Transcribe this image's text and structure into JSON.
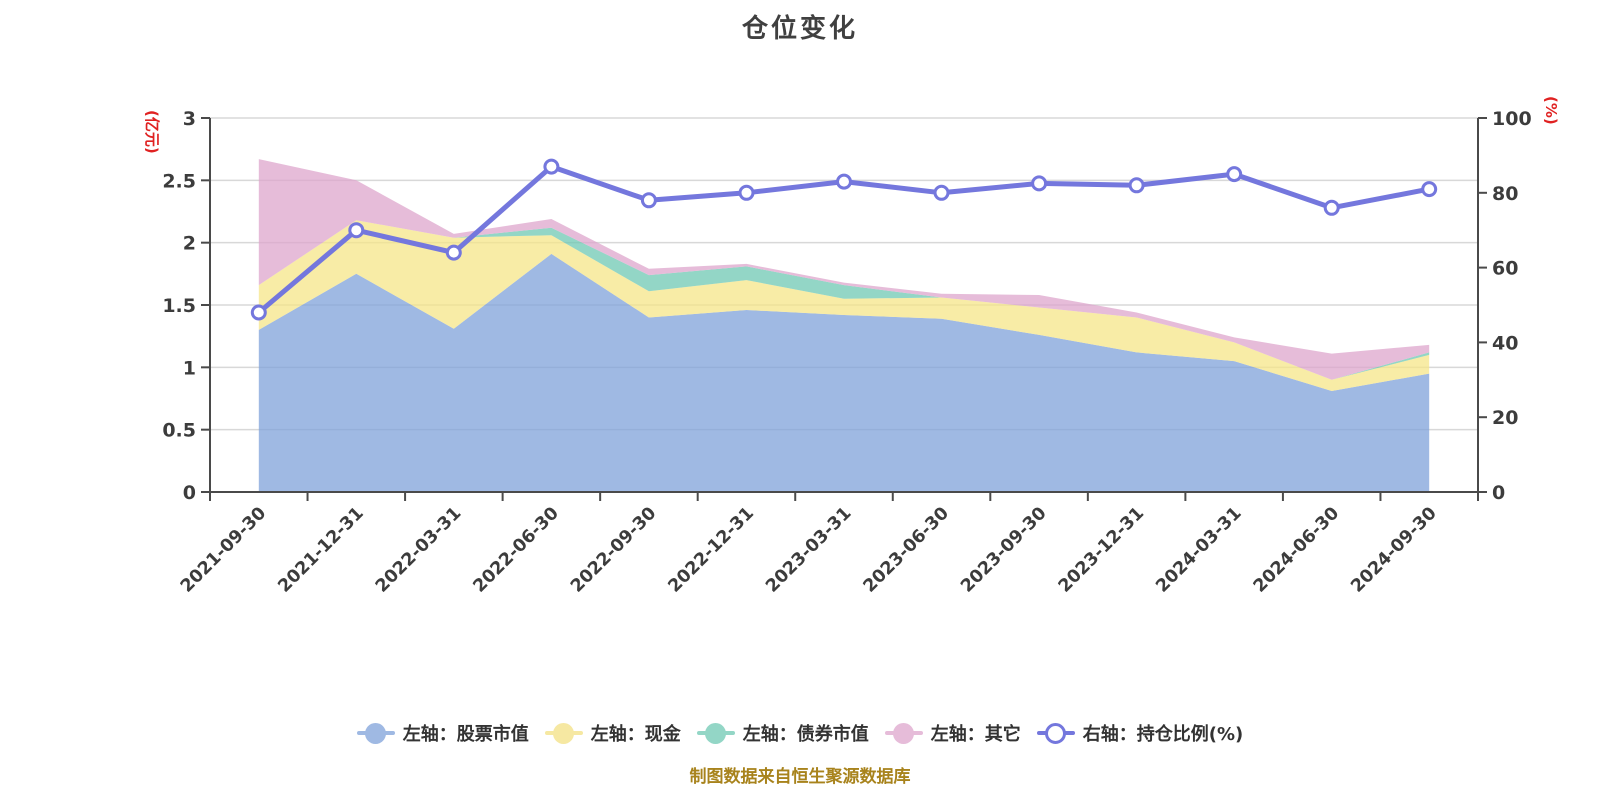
{
  "title": "仓位变化",
  "footer": "制图数据来自恒生聚源数据库",
  "legend": {
    "items": [
      {
        "label": "左轴：股票市值",
        "color": "#9fb9e3",
        "hollow": false
      },
      {
        "label": "左轴：现金",
        "color": "#f6e8a2",
        "hollow": false
      },
      {
        "label": "左轴：债券市值",
        "color": "#93d6c6",
        "hollow": false
      },
      {
        "label": "左轴：其它",
        "color": "#e6bcd9",
        "hollow": false
      },
      {
        "label": "右轴：持仓比例(%)",
        "color": "#7477dd",
        "hollow": true
      }
    ]
  },
  "chart_data": {
    "type": "area",
    "title": "仓位变化",
    "categories": [
      "2021-09-30",
      "2021-12-31",
      "2022-03-31",
      "2022-06-30",
      "2022-09-30",
      "2022-12-31",
      "2023-03-31",
      "2023-06-30",
      "2023-09-30",
      "2023-12-31",
      "2024-03-31",
      "2024-06-30",
      "2024-09-30"
    ],
    "series": [
      {
        "name": "左轴：股票市值",
        "type": "area",
        "stack": true,
        "yaxis": "left",
        "legend_color": "#9fb9e3",
        "fill": "#7fa1d9",
        "values": [
          1.3,
          1.75,
          1.31,
          1.91,
          1.4,
          1.46,
          1.42,
          1.39,
          1.26,
          1.12,
          1.05,
          0.81,
          0.95
        ]
      },
      {
        "name": "左轴：现金",
        "type": "area",
        "stack": true,
        "yaxis": "left",
        "legend_color": "#f6e8a2",
        "fill": "#f5e588",
        "values": [
          0.36,
          0.43,
          0.73,
          0.15,
          0.21,
          0.24,
          0.13,
          0.17,
          0.22,
          0.28,
          0.15,
          0.09,
          0.15
        ]
      },
      {
        "name": "左轴：债券市值",
        "type": "area",
        "stack": true,
        "yaxis": "left",
        "legend_color": "#93d6c6",
        "fill": "#6fc8b3",
        "values": [
          0,
          0,
          0,
          0.06,
          0.13,
          0.11,
          0.11,
          0,
          0,
          0,
          0,
          0,
          0.02
        ]
      },
      {
        "name": "左轴：其它",
        "type": "area",
        "stack": true,
        "yaxis": "left",
        "legend_color": "#e6bcd9",
        "fill": "#dda5cc",
        "values": [
          1.01,
          0.32,
          0.03,
          0.07,
          0.05,
          0.02,
          0.02,
          0.03,
          0.1,
          0.04,
          0.04,
          0.21,
          0.06
        ]
      },
      {
        "name": "右轴：持仓比例(%)",
        "type": "line",
        "yaxis": "right",
        "legend_color": "#7477dd",
        "line_color": "#7477dd",
        "values": [
          48,
          70,
          64,
          87,
          78,
          80,
          83,
          80,
          82.5,
          82,
          85,
          76,
          81
        ]
      }
    ],
    "left_axis": {
      "unit": "(亿元)",
      "min": 0,
      "max": 3,
      "tick_step": 0.5,
      "ticks": [
        "0",
        "0.5",
        "1",
        "1.5",
        "2",
        "2.5",
        "3"
      ]
    },
    "right_axis": {
      "unit": "(%)",
      "min": 0,
      "max": 100,
      "tick_step": 20,
      "ticks": [
        "0",
        "20",
        "40",
        "60",
        "80",
        "100"
      ]
    },
    "grid": true,
    "legend_position": "bottom",
    "colors": {
      "axis_line": "#4a4a4a",
      "tick_label": "#3c3c3c",
      "grid_line": "#d8d8d8",
      "axis_unit": "#e02222",
      "line_series": "#7477dd",
      "footer_text": "#a8831c",
      "title_text": "#404040"
    }
  }
}
